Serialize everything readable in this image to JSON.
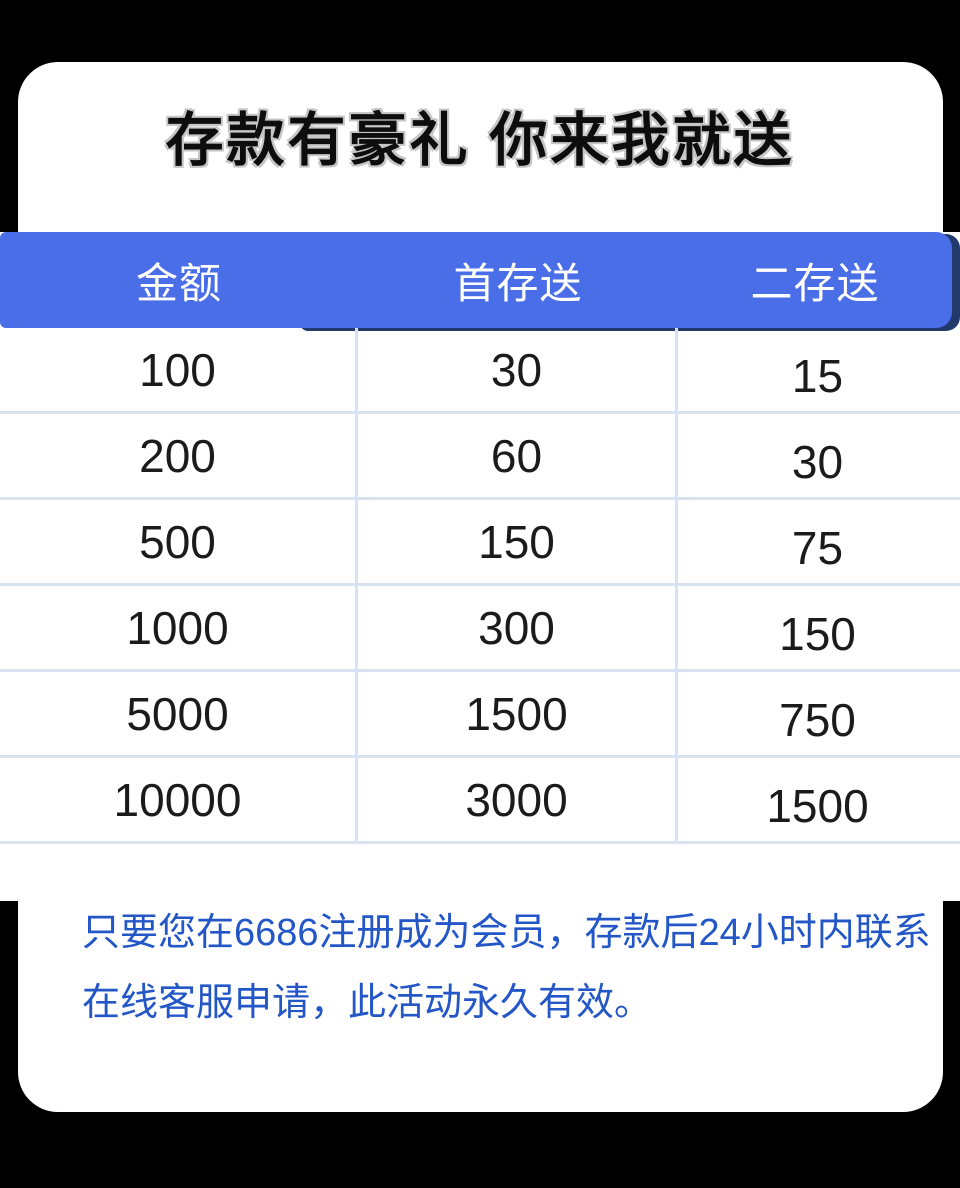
{
  "page": {
    "background_color": "#000000",
    "card_color": "#ffffff"
  },
  "title": "存款有豪礼 你来我就送",
  "table": {
    "header": {
      "background_color": "#4a6de8",
      "shadow_color": "#22396b",
      "text_color": "#ffffff",
      "columns": [
        "金额",
        "首存送",
        "二存送"
      ]
    },
    "divider_color": "#d7e3f1",
    "rows": [
      [
        "100",
        "30",
        "15"
      ],
      [
        "200",
        "60",
        "30"
      ],
      [
        "500",
        "150",
        "75"
      ],
      [
        "1000",
        "300",
        "150"
      ],
      [
        "5000",
        "1500",
        "750"
      ],
      [
        "10000",
        "3000",
        "1500"
      ]
    ]
  },
  "footer": {
    "text_color": "#2356c6",
    "lines": [
      "只要您在6686注册成为会员，存款后24小时内联系",
      "在线客服申请，此活动永久有效。"
    ]
  }
}
